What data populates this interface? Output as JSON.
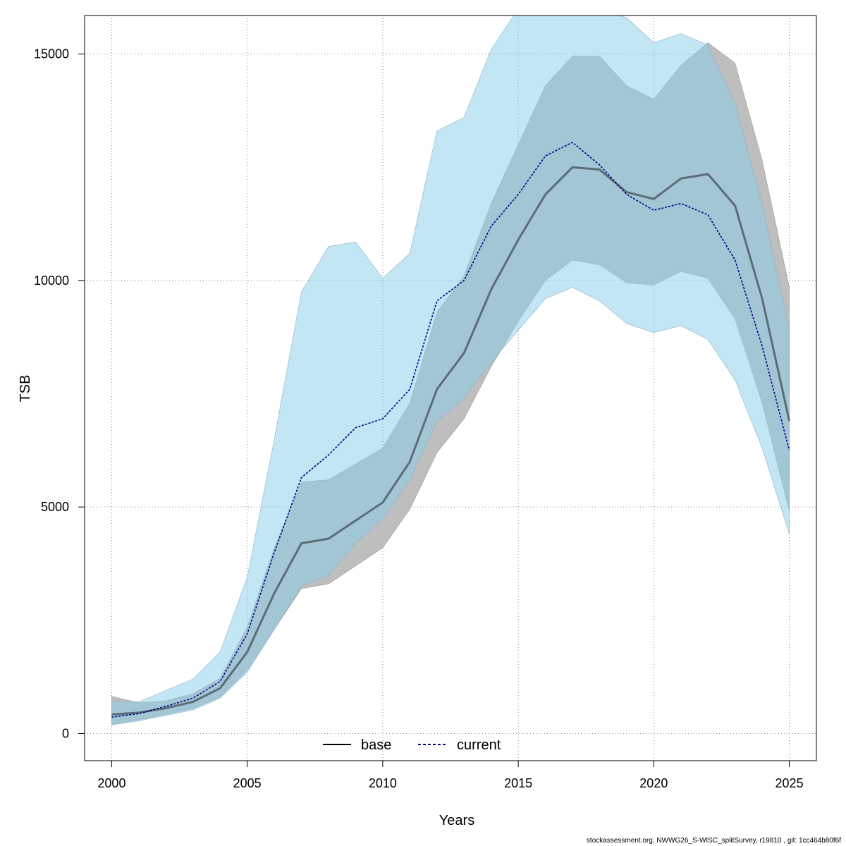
{
  "chart_data": {
    "type": "line",
    "xlabel": "Years",
    "ylabel": "TSB",
    "xlim": [
      1999,
      2026
    ],
    "ylim": [
      -600,
      15850
    ],
    "xticks": [
      2000,
      2005,
      2010,
      2015,
      2020,
      2025
    ],
    "yticks": [
      0,
      5000,
      10000,
      15000
    ],
    "grid": true,
    "legend_position": "bottom-center",
    "x": [
      2000,
      2001,
      2002,
      2003,
      2004,
      2005,
      2006,
      2007,
      2008,
      2009,
      2010,
      2011,
      2012,
      2013,
      2014,
      2015,
      2016,
      2017,
      2018,
      2019,
      2020,
      2021,
      2022,
      2023,
      2024,
      2025
    ],
    "series": [
      {
        "name": "base",
        "color": "#000000",
        "line_style": "solid",
        "band_color": "#bebebe",
        "values": [
          420,
          460,
          560,
          700,
          1000,
          1800,
          3100,
          4200,
          4300,
          4700,
          5100,
          6000,
          7600,
          8400,
          9800,
          10900,
          11900,
          12500,
          12450,
          11950,
          11800,
          12250,
          12350,
          11650,
          9600,
          6900
        ],
        "lower": [
          200,
          300,
          420,
          550,
          800,
          1400,
          2300,
          3200,
          3300,
          3700,
          4100,
          4950,
          6200,
          6950,
          8100,
          9100,
          10000,
          10450,
          10350,
          9950,
          9900,
          10200,
          10050,
          9150,
          7300,
          4900
        ],
        "upper": [
          820,
          680,
          720,
          880,
          1220,
          2350,
          4100,
          5550,
          5600,
          5950,
          6300,
          7300,
          9300,
          10100,
          11700,
          13000,
          14300,
          14950,
          14950,
          14300,
          14000,
          14750,
          15250,
          14800,
          12650,
          9850
        ]
      },
      {
        "name": "current",
        "color": "#00008b",
        "line_style": "dashed",
        "band_color": "#87ceeb",
        "values": [
          360,
          440,
          600,
          780,
          1150,
          2200,
          4000,
          5650,
          6150,
          6750,
          6950,
          7600,
          9550,
          10000,
          11200,
          11900,
          12750,
          13050,
          12550,
          11900,
          11550,
          11700,
          11450,
          10450,
          8550,
          6250
        ],
        "lower": [
          190,
          280,
          400,
          520,
          780,
          1350,
          2300,
          3250,
          3500,
          4200,
          4750,
          5600,
          6900,
          7400,
          8200,
          8900,
          9600,
          9850,
          9550,
          9050,
          8850,
          9000,
          8700,
          7800,
          6300,
          4400
        ],
        "upper": [
          720,
          700,
          950,
          1200,
          1800,
          3450,
          6500,
          9750,
          10750,
          10850,
          10050,
          10600,
          13300,
          13600,
          15100,
          16000,
          16000,
          16000,
          16000,
          15800,
          15250,
          15450,
          15200,
          13900,
          11700,
          8900
        ]
      }
    ]
  },
  "footer_text": "stockassessment.org, NWWG26_S-WISC_splitSurvey, r19810 , git: 1cc464b80f6f"
}
